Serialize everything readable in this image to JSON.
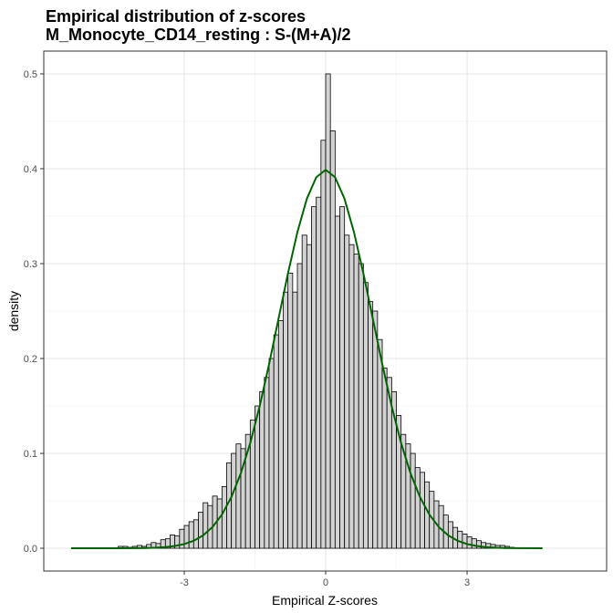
{
  "chart_data": {
    "type": "histogram",
    "title": "Empirical distribution of z-scores",
    "subtitle": "M_Monocyte_CD14_resting : S-(M+A)/2",
    "x_label": "Empirical Z-scores",
    "y_label": "density",
    "bins": [
      -5.4,
      -5.3,
      -5.2,
      -5.1,
      -5.0,
      -4.9,
      -4.8,
      -4.7,
      -4.6,
      -4.5,
      -4.4,
      -4.3,
      -4.2,
      -4.1,
      -4.0,
      -3.9,
      -3.8,
      -3.7,
      -3.6,
      -3.5,
      -3.4,
      -3.3,
      -3.2,
      -3.1,
      -3.0,
      -2.9,
      -2.8,
      -2.7,
      -2.6,
      -2.5,
      -2.4,
      -2.3,
      -2.2,
      -2.1,
      -2.0,
      -1.9,
      -1.8,
      -1.7,
      -1.6,
      -1.5,
      -1.4,
      -1.3,
      -1.2,
      -1.1,
      -1.0,
      -0.9,
      -0.8,
      -0.7,
      -0.6,
      -0.5,
      -0.4,
      -0.3,
      -0.2,
      -0.1,
      0.0,
      0.1,
      0.2,
      0.3,
      0.4,
      0.5,
      0.6,
      0.7,
      0.8,
      0.9,
      1.0,
      1.1,
      1.2,
      1.3,
      1.4,
      1.5,
      1.6,
      1.7,
      1.8,
      1.9,
      2.0,
      2.1,
      2.2,
      2.3,
      2.4,
      2.5,
      2.6,
      2.7,
      2.8,
      2.9,
      3.0,
      3.1,
      3.2,
      3.3,
      3.4,
      3.5,
      3.6,
      3.7,
      3.8,
      3.9,
      4.0,
      4.1,
      4.2,
      4.3,
      4.4,
      4.5,
      4.6,
      4.7,
      4.8,
      4.9,
      5.0,
      5.1,
      5.2,
      5.3,
      5.4
    ],
    "values": [
      0,
      0,
      0,
      0,
      0,
      0,
      0,
      0,
      0,
      0,
      0.002,
      0.002,
      0.001,
      0.002,
      0.003,
      0.002,
      0.004,
      0.006,
      0.005,
      0.009,
      0.01,
      0.014,
      0.013,
      0.02,
      0.024,
      0.028,
      0.03,
      0.038,
      0.048,
      0.045,
      0.055,
      0.052,
      0.065,
      0.09,
      0.1,
      0.11,
      0.105,
      0.12,
      0.135,
      0.15,
      0.165,
      0.18,
      0.2,
      0.225,
      0.24,
      0.27,
      0.29,
      0.27,
      0.3,
      0.33,
      0.32,
      0.36,
      0.37,
      0.43,
      0.5,
      0.44,
      0.35,
      0.36,
      0.33,
      0.32,
      0.31,
      0.3,
      0.28,
      0.26,
      0.25,
      0.22,
      0.19,
      0.18,
      0.165,
      0.14,
      0.12,
      0.11,
      0.1,
      0.085,
      0.08,
      0.07,
      0.06,
      0.05,
      0.045,
      0.035,
      0.028,
      0.022,
      0.018,
      0.015,
      0.012,
      0.01,
      0.008,
      0.006,
      0.005,
      0.004,
      0.003,
      0.003,
      0.002,
      0.001,
      0,
      0,
      0,
      0,
      0,
      0,
      0,
      0,
      0,
      0,
      0,
      0,
      0,
      0
    ],
    "color": "#d3d3d3",
    "curve": {
      "color": "#006400",
      "x": [
        -5.4,
        -4.0,
        -3.8,
        -3.6,
        -3.4,
        -3.2,
        -3.0,
        -2.8,
        -2.6,
        -2.4,
        -2.2,
        -2.0,
        -1.8,
        -1.6,
        -1.4,
        -1.2,
        -1.0,
        -0.8,
        -0.6,
        -0.4,
        -0.2,
        0.0,
        0.2,
        0.4,
        0.6,
        0.8,
        1.0,
        1.2,
        1.4,
        1.6,
        1.8,
        2.0,
        2.2,
        2.4,
        2.6,
        2.8,
        3.0,
        3.2,
        3.4,
        3.6,
        3.8,
        4.0,
        4.6
      ],
      "values": [
        0,
        0.0001,
        0.0003,
        0.0006,
        0.0012,
        0.0024,
        0.0044,
        0.0079,
        0.0136,
        0.0224,
        0.0355,
        0.054,
        0.079,
        0.1109,
        0.1497,
        0.1942,
        0.242,
        0.2897,
        0.3332,
        0.3683,
        0.391,
        0.3989,
        0.391,
        0.3683,
        0.3332,
        0.2897,
        0.242,
        0.1942,
        0.1497,
        0.1109,
        0.079,
        0.054,
        0.0355,
        0.0224,
        0.0136,
        0.0079,
        0.0044,
        0.0024,
        0.0012,
        0.0006,
        0.0003,
        0.0001,
        0
      ]
    },
    "xlim": [
      -5.98,
      5.96
    ],
    "ylim": [
      -0.024,
      0.524
    ],
    "xticks": [
      -3,
      0,
      3
    ],
    "yticks": [
      {
        "value": 0,
        "label": "0.0"
      },
      {
        "value": 0.1,
        "label": "0.1"
      },
      {
        "value": 0.2,
        "label": "0.2"
      },
      {
        "value": 0.3,
        "label": "0.3"
      },
      {
        "value": 0.4,
        "label": "0.4"
      },
      {
        "value": 0.5,
        "label": "0.5"
      }
    ],
    "grid": true
  }
}
